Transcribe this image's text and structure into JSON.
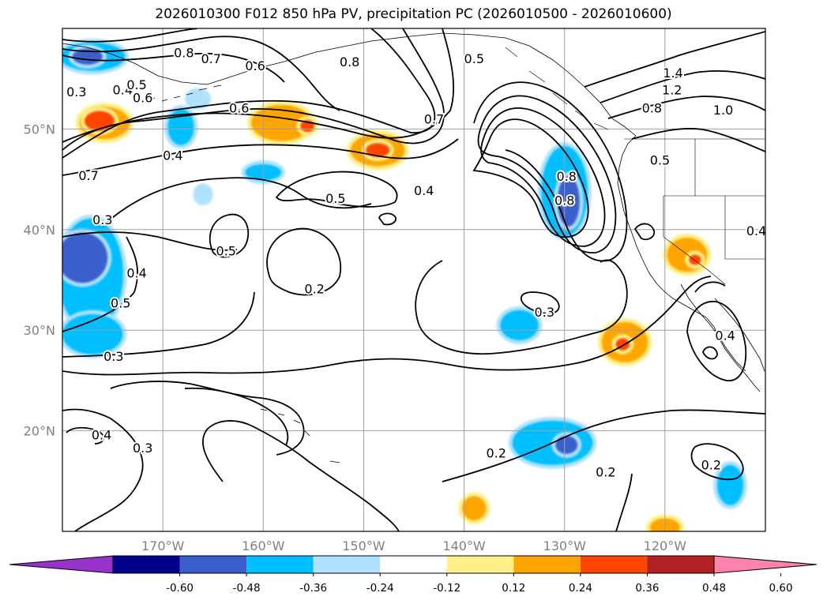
{
  "chart_data": {
    "type": "contour-map",
    "title": "2026010300 F012 850 hPa PV, precipitation PC (2026010500 - 2026010600)",
    "lon_range": [
      -180,
      -110
    ],
    "lat_range": [
      10,
      60
    ],
    "grid": true,
    "lat_ticks": [
      {
        "value": 20,
        "label": "20°N"
      },
      {
        "value": 30,
        "label": "30°N"
      },
      {
        "value": 40,
        "label": "40°N"
      },
      {
        "value": 50,
        "label": "50°N"
      }
    ],
    "lon_ticks": [
      {
        "value": -170,
        "label": "170°W"
      },
      {
        "value": -160,
        "label": "160°W"
      },
      {
        "value": -150,
        "label": "150°W"
      },
      {
        "value": -140,
        "label": "140°W"
      },
      {
        "value": -130,
        "label": "130°W"
      },
      {
        "value": -120,
        "label": "120°W"
      }
    ],
    "colorbar": {
      "orientation": "horizontal",
      "extend": "both",
      "ticks": [
        "-0.60",
        "-0.48",
        "-0.36",
        "-0.24",
        "-0.12",
        "0.12",
        "0.24",
        "0.36",
        "0.48",
        "0.60"
      ],
      "colors": [
        "#9932cc",
        "#00008b",
        "#3a5fcd",
        "#00bfff",
        "#b0e2ff",
        "#ffffff",
        "#fff08a",
        "#ffa500",
        "#ff4500",
        "#b22222",
        "#ff82ab"
      ]
    },
    "contour_labels": [
      {
        "text": "0.8",
        "lon": -167.9,
        "lat": 57.5
      },
      {
        "text": "0.7",
        "lon": -165.2,
        "lat": 56.9
      },
      {
        "text": "0.6",
        "lon": -160.8,
        "lat": 56.2
      },
      {
        "text": "0.8",
        "lon": -151.4,
        "lat": 56.6
      },
      {
        "text": "0.5",
        "lon": -139.0,
        "lat": 56.9
      },
      {
        "text": "1.4",
        "lon": -119.2,
        "lat": 55.5
      },
      {
        "text": "1.2",
        "lon": -119.3,
        "lat": 53.8
      },
      {
        "text": "0.8",
        "lon": -121.3,
        "lat": 52.0
      },
      {
        "text": "1.0",
        "lon": -114.2,
        "lat": 51.8
      },
      {
        "text": "0.3",
        "lon": -178.6,
        "lat": 53.6
      },
      {
        "text": "0.4",
        "lon": -174.0,
        "lat": 53.8
      },
      {
        "text": "0.5",
        "lon": -172.6,
        "lat": 54.3
      },
      {
        "text": "0.6",
        "lon": -172.0,
        "lat": 53.0
      },
      {
        "text": "0.6",
        "lon": -162.4,
        "lat": 52.0
      },
      {
        "text": "0.7",
        "lon": -143.0,
        "lat": 50.9
      },
      {
        "text": "0.7",
        "lon": -177.4,
        "lat": 45.3
      },
      {
        "text": "0.4",
        "lon": -169.0,
        "lat": 47.3
      },
      {
        "text": "0.5",
        "lon": -120.5,
        "lat": 46.8
      },
      {
        "text": "0.5",
        "lon": -152.8,
        "lat": 43.0
      },
      {
        "text": "0.4",
        "lon": -144.0,
        "lat": 43.8
      },
      {
        "text": "0.3",
        "lon": -176.0,
        "lat": 40.9
      },
      {
        "text": "0.4",
        "lon": -110.9,
        "lat": 39.8
      },
      {
        "text": "0.5",
        "lon": -163.7,
        "lat": 37.8
      },
      {
        "text": "0.4",
        "lon": -172.6,
        "lat": 35.6
      },
      {
        "text": "0.5",
        "lon": -174.2,
        "lat": 32.6
      },
      {
        "text": "0.2",
        "lon": -154.9,
        "lat": 34.0
      },
      {
        "text": "0.3",
        "lon": -132.0,
        "lat": 31.7
      },
      {
        "text": "0.4",
        "lon": -114.0,
        "lat": 29.4
      },
      {
        "text": "0.3",
        "lon": -174.9,
        "lat": 27.3
      },
      {
        "text": "0.4",
        "lon": -176.1,
        "lat": 19.5
      },
      {
        "text": "0.3",
        "lon": -172.0,
        "lat": 18.2
      },
      {
        "text": "0.2",
        "lon": -136.8,
        "lat": 17.7
      },
      {
        "text": "0.2",
        "lon": -125.9,
        "lat": 15.8
      },
      {
        "text": "0.2",
        "lon": -115.4,
        "lat": 16.5
      },
      {
        "text": "0.8",
        "lon": -129.8,
        "lat": 45.2
      },
      {
        "text": "0.8",
        "lon": -130.0,
        "lat": 42.8
      }
    ],
    "precip_patches": [
      {
        "lon": -177.0,
        "lat": 57.2,
        "w": 6.5,
        "h": 2.8,
        "level": -0.36
      },
      {
        "lon": -177.5,
        "lat": 57.2,
        "w": 3.0,
        "h": 1.6,
        "level": -0.48
      },
      {
        "lon": -175.8,
        "lat": 50.6,
        "w": 5.0,
        "h": 3.2,
        "level": 0.24
      },
      {
        "lon": -176.3,
        "lat": 50.8,
        "w": 3.0,
        "h": 2.0,
        "level": 0.36
      },
      {
        "lon": -168.2,
        "lat": 50.2,
        "w": 2.6,
        "h": 3.6,
        "level": -0.36
      },
      {
        "lon": -166.5,
        "lat": 53.0,
        "w": 1.8,
        "h": 1.4,
        "level": -0.24
      },
      {
        "lon": -158.2,
        "lat": 50.6,
        "w": 6.0,
        "h": 3.6,
        "level": 0.24
      },
      {
        "lon": -155.6,
        "lat": 50.3,
        "w": 1.4,
        "h": 1.2,
        "level": 0.36
      },
      {
        "lon": -148.6,
        "lat": 47.9,
        "w": 5.4,
        "h": 3.2,
        "level": 0.24
      },
      {
        "lon": -148.6,
        "lat": 47.9,
        "w": 2.4,
        "h": 1.4,
        "level": 0.36
      },
      {
        "lon": -160.0,
        "lat": 45.7,
        "w": 3.6,
        "h": 1.6,
        "level": -0.36
      },
      {
        "lon": -166.0,
        "lat": 43.5,
        "w": 1.2,
        "h": 1.4,
        "level": -0.24
      },
      {
        "lon": -177.2,
        "lat": 35.6,
        "w": 6.5,
        "h": 11.0,
        "level": -0.36
      },
      {
        "lon": -178.0,
        "lat": 37.2,
        "w": 5.0,
        "h": 5.0,
        "level": -0.48
      },
      {
        "lon": -177.0,
        "lat": 29.6,
        "w": 6.0,
        "h": 4.0,
        "level": -0.36
      },
      {
        "lon": -130.0,
        "lat": 43.8,
        "w": 4.6,
        "h": 9.0,
        "level": -0.36
      },
      {
        "lon": -129.6,
        "lat": 42.8,
        "w": 2.2,
        "h": 5.0,
        "level": -0.48
      },
      {
        "lon": -134.5,
        "lat": 30.5,
        "w": 3.8,
        "h": 3.0,
        "level": -0.36
      },
      {
        "lon": -117.8,
        "lat": 37.5,
        "w": 4.0,
        "h": 3.4,
        "level": 0.24
      },
      {
        "lon": -117.0,
        "lat": 37.0,
        "w": 1.2,
        "h": 1.0,
        "level": 0.36
      },
      {
        "lon": -124.0,
        "lat": 28.8,
        "w": 4.6,
        "h": 4.0,
        "level": 0.24
      },
      {
        "lon": -124.2,
        "lat": 28.6,
        "w": 1.4,
        "h": 1.2,
        "level": 0.36
      },
      {
        "lon": -131.2,
        "lat": 18.8,
        "w": 8.0,
        "h": 4.4,
        "level": -0.36
      },
      {
        "lon": -129.8,
        "lat": 18.6,
        "w": 2.2,
        "h": 1.8,
        "level": -0.48
      },
      {
        "lon": -139.0,
        "lat": 12.3,
        "w": 2.4,
        "h": 2.4,
        "level": 0.24
      },
      {
        "lon": -113.5,
        "lat": 14.6,
        "w": 2.6,
        "h": 4.0,
        "level": -0.36
      },
      {
        "lon": -120.0,
        "lat": 10.4,
        "w": 3.0,
        "h": 1.8,
        "level": 0.24
      }
    ]
  }
}
